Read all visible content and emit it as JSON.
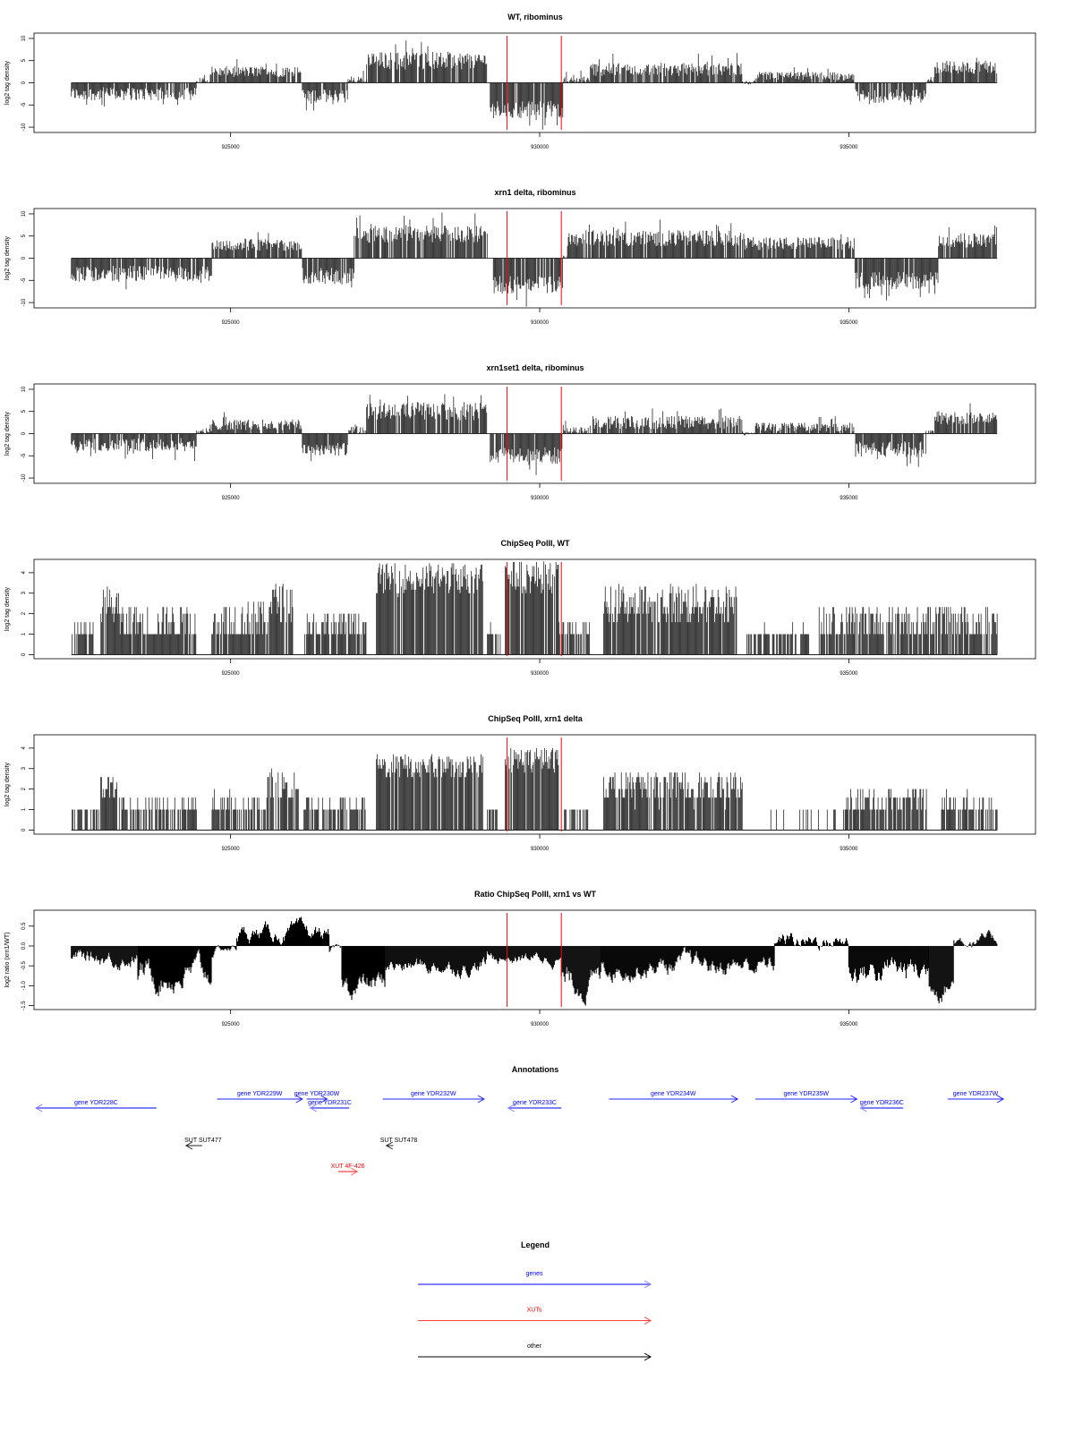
{
  "chart_data": {
    "type": "bar",
    "xlim": [
      921820,
      938020
    ],
    "x_ticks": [
      925000,
      930000,
      935000
    ],
    "x_tick_labels": [
      "925000",
      "930000",
      "935000"
    ],
    "marker_lines": {
      "positions": [
        929470,
        930350
      ],
      "color": "#ff0000"
    },
    "panels": [
      {
        "id": "wt",
        "title": "WT, ribominus",
        "ylabel": "log2 tag density",
        "ylim": [
          -11.2,
          11.2
        ],
        "y_ticks": [
          -10,
          -5,
          0,
          5,
          10
        ],
        "y_tick_labels": [
          "-10",
          "-5",
          "0",
          "5",
          "10"
        ],
        "mode": "bars",
        "segments_start_end_mean_spread": [
          [
            922424,
            924450,
            -2.5,
            1.5
          ],
          [
            924450,
            924700,
            0.3,
            1
          ],
          [
            924700,
            926150,
            2.5,
            1.2
          ],
          [
            926160,
            926900,
            -3,
            1.5
          ],
          [
            926900,
            927200,
            0.5,
            1
          ],
          [
            927200,
            929150,
            5,
            2
          ],
          [
            929200,
            930380,
            -6,
            2
          ],
          [
            930380,
            930820,
            0.5,
            1
          ],
          [
            930820,
            933280,
            3,
            1.5
          ],
          [
            933280,
            933490,
            0,
            0.5
          ],
          [
            933490,
            935090,
            1.5,
            1
          ],
          [
            935110,
            936250,
            -3,
            1.5
          ],
          [
            936250,
            936390,
            0.3,
            0.5
          ],
          [
            936390,
            937400,
            3.5,
            1.5
          ]
        ]
      },
      {
        "id": "xrn1",
        "title": "xrn1 delta, ribominus",
        "ylabel": "log2 tag density",
        "ylim": [
          -11.2,
          11.2
        ],
        "y_ticks": [
          -10,
          -5,
          0,
          5,
          10
        ],
        "y_tick_labels": [
          "-10",
          "-5",
          "0",
          "5",
          "10"
        ],
        "mode": "bars",
        "segments_start_end_mean_spread": [
          [
            922424,
            924700,
            -3.5,
            1.8
          ],
          [
            924700,
            926150,
            3,
            1.3
          ],
          [
            926150,
            927000,
            -4,
            1.8
          ],
          [
            927000,
            929150,
            5.5,
            2
          ],
          [
            929250,
            930380,
            -6,
            2
          ],
          [
            930380,
            930450,
            0.3,
            0.5
          ],
          [
            930450,
            933280,
            4.5,
            1.8
          ],
          [
            933300,
            935100,
            3.3,
            1.5
          ],
          [
            935100,
            936450,
            -5,
            2
          ],
          [
            936450,
            937400,
            4,
            1.8
          ]
        ]
      },
      {
        "id": "xrn1set1",
        "title": "xrn1set1 delta, ribominus",
        "ylabel": "log2 tag density",
        "ylim": [
          -11.2,
          11.2
        ],
        "y_ticks": [
          -10,
          -5,
          0,
          5,
          10
        ],
        "y_tick_labels": [
          "-10",
          "-5",
          "0",
          "5",
          "10"
        ],
        "mode": "bars",
        "segments_start_end_mean_spread": [
          [
            922424,
            924450,
            -2.5,
            1.5
          ],
          [
            924450,
            924700,
            0.3,
            1
          ],
          [
            924700,
            926150,
            2,
            1.2
          ],
          [
            926160,
            926900,
            -3.5,
            1.5
          ],
          [
            926900,
            927200,
            0.5,
            1
          ],
          [
            927200,
            929150,
            5,
            2
          ],
          [
            929200,
            930380,
            -5,
            2
          ],
          [
            930380,
            930820,
            0.5,
            1
          ],
          [
            930820,
            933280,
            2.5,
            1.5
          ],
          [
            933280,
            933490,
            0,
            0.5
          ],
          [
            933490,
            935090,
            1.5,
            1
          ],
          [
            935110,
            936250,
            -3.5,
            1.8
          ],
          [
            936250,
            936390,
            0.3,
            0.5
          ],
          [
            936390,
            937400,
            3.5,
            1.5
          ]
        ]
      },
      {
        "id": "chip-wt",
        "title": "ChipSeq PolII, WT",
        "ylabel": "log2 tag density",
        "ylim": [
          -0.2,
          4.65
        ],
        "y_ticks": [
          0,
          1,
          2,
          3,
          4
        ],
        "y_tick_labels": [
          "0",
          "1",
          "2",
          "3",
          "4"
        ],
        "mode": "counts",
        "segments_start_end_mean_spread": [
          [
            922424,
            922786,
            1,
            0.4
          ],
          [
            922902,
            923200,
            2.4,
            0.6
          ],
          [
            923200,
            924450,
            1.5,
            0.6
          ],
          [
            924696,
            925600,
            1.6,
            0.6
          ],
          [
            925600,
            926042,
            2.6,
            0.6
          ],
          [
            926187,
            927200,
            1.3,
            0.5
          ],
          [
            927344,
            929081,
            3.7,
            0.5
          ],
          [
            929153,
            929370,
            1,
            0.3
          ],
          [
            929442,
            930310,
            3.8,
            0.5
          ],
          [
            930310,
            930817,
            1,
            0.5
          ],
          [
            931034,
            933205,
            2.5,
            0.6
          ],
          [
            933349,
            934362,
            0.9,
            0.3
          ],
          [
            934507,
            937401,
            1.5,
            0.6
          ]
        ]
      },
      {
        "id": "chip-xrn1",
        "title": "ChipSeq PolII, xrn1 delta",
        "ylabel": "log2 tag density",
        "ylim": [
          -0.2,
          4.65
        ],
        "y_ticks": [
          0,
          1,
          2,
          3,
          4
        ],
        "y_tick_labels": [
          "0",
          "1",
          "2",
          "3",
          "4"
        ],
        "mode": "counts",
        "segments_start_end_mean_spread": [
          [
            922424,
            922900,
            0.7,
            0.3
          ],
          [
            922900,
            923250,
            1.9,
            0.5
          ],
          [
            923250,
            924450,
            1,
            0.5
          ],
          [
            924700,
            925600,
            1.1,
            0.5
          ],
          [
            925600,
            926100,
            2.2,
            0.5
          ],
          [
            926187,
            927200,
            1,
            0.4
          ],
          [
            927344,
            929081,
            3.1,
            0.4
          ],
          [
            929153,
            929370,
            0.8,
            0.3
          ],
          [
            929442,
            930310,
            3.4,
            0.4
          ],
          [
            930400,
            930817,
            0.6,
            0.3
          ],
          [
            931034,
            933280,
            2.1,
            0.5
          ],
          [
            933400,
            934900,
            0.4,
            0.2
          ],
          [
            934900,
            936260,
            1.3,
            0.5
          ],
          [
            936500,
            937401,
            1.1,
            0.5
          ]
        ]
      },
      {
        "id": "ratio",
        "title": "Ratio ChipSeq PolII, xrn1 vs WT",
        "ylabel": "log2 ratio (xrn1/WT)",
        "ylim": [
          -1.6,
          0.9
        ],
        "y_ticks": [
          -1.5,
          -1.0,
          -0.5,
          0.0,
          0.5
        ],
        "y_tick_labels": [
          "-1.5",
          "-1.0",
          "-0.5",
          "0.0",
          "0.5"
        ],
        "mode": "area",
        "segments_start_end_mean_spread": [
          [
            922424,
            923500,
            -0.3,
            0.2
          ],
          [
            923500,
            924700,
            -0.7,
            0.35
          ],
          [
            924700,
            925100,
            -0.05,
            0.1
          ],
          [
            925100,
            926600,
            0.3,
            0.2
          ],
          [
            926600,
            926800,
            -0.1,
            0.1
          ],
          [
            926800,
            927500,
            -1.0,
            0.3
          ],
          [
            927500,
            929150,
            -0.5,
            0.2
          ],
          [
            929150,
            930350,
            -0.3,
            0.15
          ],
          [
            930350,
            931000,
            -0.9,
            0.35
          ],
          [
            931000,
            933800,
            -0.5,
            0.25
          ],
          [
            933800,
            935000,
            0.15,
            0.2
          ],
          [
            935000,
            936300,
            -0.6,
            0.35
          ],
          [
            936300,
            936700,
            -0.9,
            0.3
          ],
          [
            936700,
            937401,
            0.15,
            0.15
          ]
        ]
      }
    ],
    "annotations": {
      "title": "Annotations",
      "features": [
        {
          "label": "gene YDR228C",
          "start": 921850,
          "end": 923800,
          "strand": "-",
          "type": "gene"
        },
        {
          "label": "gene YDR229W",
          "start": 924780,
          "end": 926160,
          "strand": "+",
          "type": "gene"
        },
        {
          "label": "gene YDR230W",
          "start": 926230,
          "end": 926560,
          "strand": "+",
          "type": "gene"
        },
        {
          "label": "gene YDR231C",
          "start": 926290,
          "end": 926920,
          "strand": "-",
          "type": "gene"
        },
        {
          "label": "gene YDR232W",
          "start": 927460,
          "end": 929100,
          "strand": "+",
          "type": "gene"
        },
        {
          "label": "gene YDR233C",
          "start": 929490,
          "end": 930350,
          "strand": "-",
          "type": "gene"
        },
        {
          "label": "gene YDR234W",
          "start": 931120,
          "end": 933200,
          "strand": "+",
          "type": "gene"
        },
        {
          "label": "gene YDR235W",
          "start": 933490,
          "end": 935130,
          "strand": "+",
          "type": "gene"
        },
        {
          "label": "gene YDR236C",
          "start": 935190,
          "end": 935880,
          "strand": "-",
          "type": "gene"
        },
        {
          "label": "gene YDR237W",
          "start": 936600,
          "end": 937500,
          "strand": "+",
          "type": "gene"
        },
        {
          "label": "SUT SUT477",
          "start": 924280,
          "end": 924540,
          "strand": "-",
          "type": "other"
        },
        {
          "label": "SUT SUT478",
          "start": 927520,
          "end": 927630,
          "strand": "-",
          "type": "other"
        },
        {
          "label": "XUT 4F-426",
          "start": 926740,
          "end": 927050,
          "strand": "+",
          "type": "xut"
        }
      ]
    },
    "legend": {
      "title": "Legend",
      "entries": [
        {
          "label": "genes",
          "color": "#0000ff"
        },
        {
          "label": "XUTs",
          "color": "#ff0000"
        },
        {
          "label": "other",
          "color": "#000000"
        }
      ]
    }
  }
}
